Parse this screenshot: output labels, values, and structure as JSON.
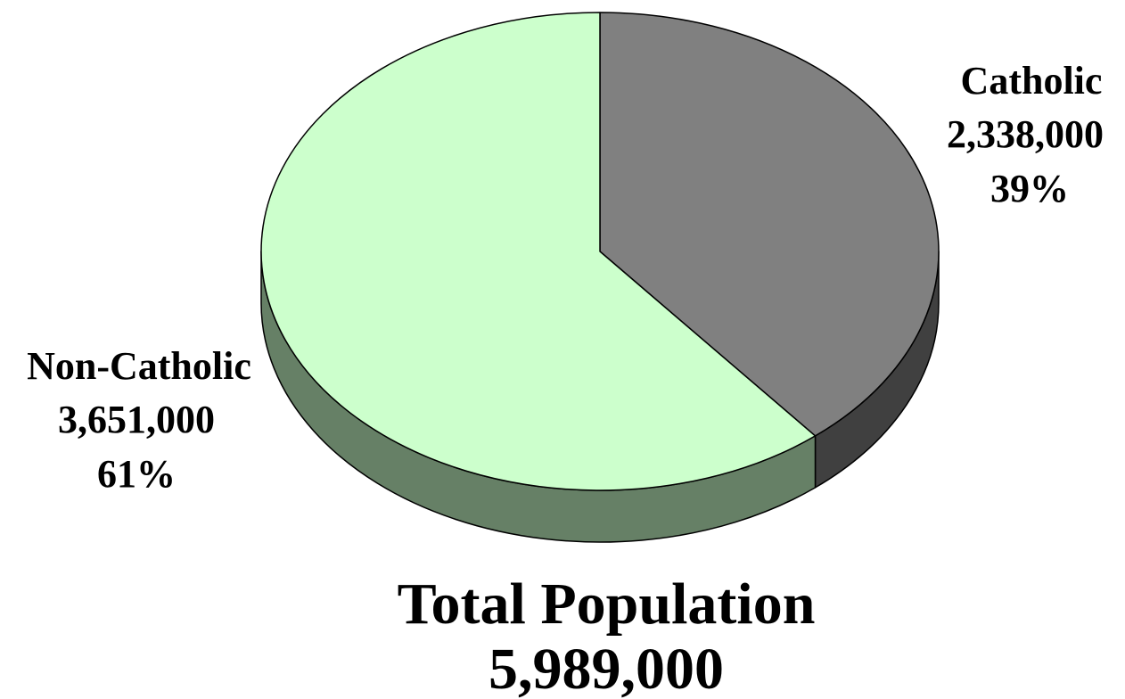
{
  "chart_data": {
    "type": "pie",
    "style": "3d",
    "slices": [
      {
        "label": "Catholic",
        "value": 2338000,
        "value_label": "2,338,000",
        "percent": 39,
        "percent_label": "39%",
        "top_color": "#808080",
        "side_color": "#404040"
      },
      {
        "label": "Non-Catholic",
        "value": 3651000,
        "value_label": "3,651,000",
        "percent": 61,
        "percent_label": "61%",
        "top_color": "#ccffcc",
        "side_color": "#668066"
      }
    ],
    "total": {
      "title": "Total Population",
      "value": 5989000,
      "value_label": "5,989,000"
    },
    "legend": "none"
  }
}
